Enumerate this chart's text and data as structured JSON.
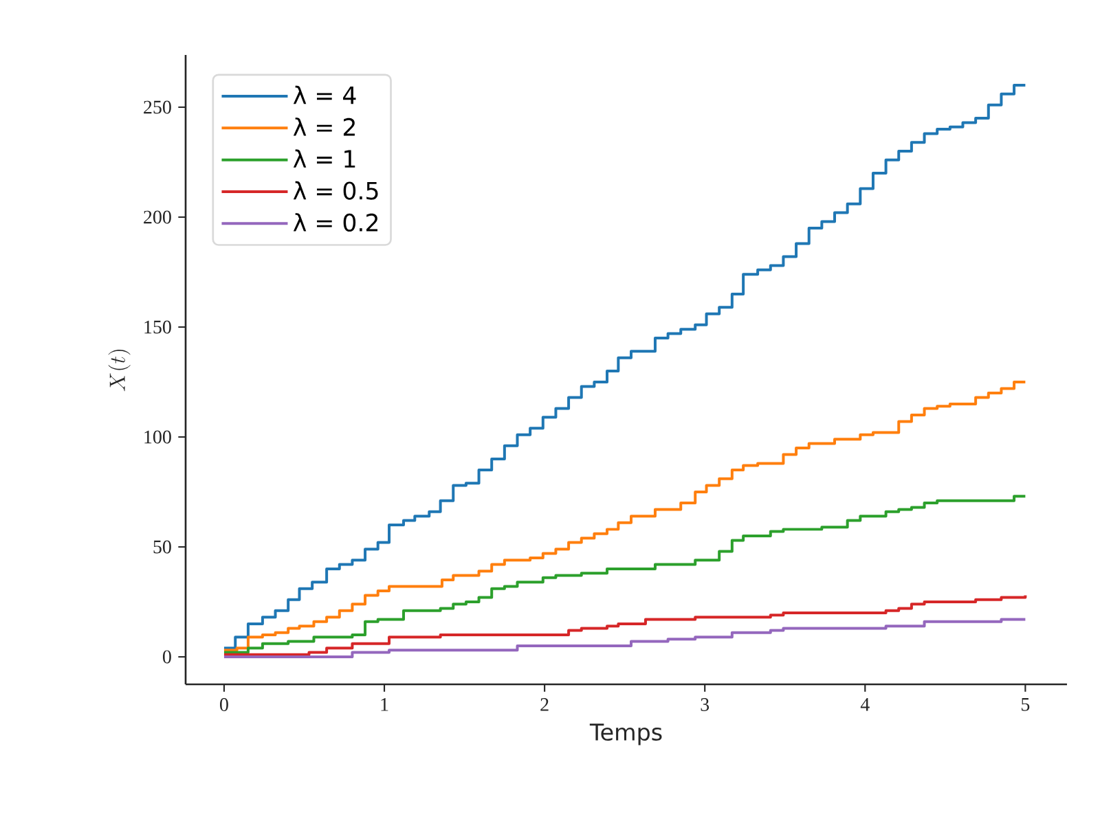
{
  "chart_data": {
    "type": "step",
    "xlabel": "Temps",
    "ylabel": "X(t)",
    "xlim": [
      -0.24,
      5.26
    ],
    "ylim": [
      -12.5,
      273.75
    ],
    "xticks": [
      0,
      1,
      2,
      3,
      4,
      5
    ],
    "yticks": [
      0,
      50,
      100,
      150,
      200,
      250
    ],
    "legend": "top left",
    "series": [
      {
        "name": "λ = 4",
        "color": "#1f77b4",
        "x": [
          0,
          0.07,
          0.15,
          0.24,
          0.32,
          0.4,
          0.47,
          0.55,
          0.64,
          0.72,
          0.8,
          0.88,
          0.96,
          1.03,
          1.12,
          1.19,
          1.28,
          1.35,
          1.43,
          1.51,
          1.59,
          1.67,
          1.75,
          1.83,
          1.91,
          1.99,
          2.07,
          2.15,
          2.23,
          2.31,
          2.39,
          2.46,
          2.54,
          2.69,
          2.77,
          2.85,
          2.94,
          3.01,
          3.09,
          3.17,
          3.24,
          3.33,
          3.41,
          3.49,
          3.57,
          3.65,
          3.73,
          3.81,
          3.89,
          3.97,
          4.05,
          4.13,
          4.21,
          4.29,
          4.37,
          4.45,
          4.53,
          4.61,
          4.69,
          4.77,
          4.85,
          4.93,
          5.0
        ],
        "values": [
          4,
          9,
          15,
          18,
          21,
          26,
          31,
          34,
          40,
          42,
          44,
          49,
          52,
          60,
          62,
          64,
          66,
          71,
          78,
          79,
          85,
          90,
          96,
          101,
          104,
          109,
          113,
          118,
          123,
          125,
          130,
          136,
          139,
          145,
          147,
          149,
          151,
          156,
          159,
          165,
          174,
          176,
          178,
          182,
          188,
          195,
          198,
          202,
          206,
          213,
          220,
          226,
          230,
          234,
          238,
          240,
          241,
          243,
          245,
          251,
          256,
          260,
          260
        ]
      },
      {
        "name": "λ = 2",
        "color": "#ff7f0e",
        "x": [
          0,
          0.08,
          0.15,
          0.24,
          0.32,
          0.4,
          0.47,
          0.56,
          0.64,
          0.72,
          0.8,
          0.88,
          0.96,
          1.03,
          1.36,
          1.43,
          1.59,
          1.67,
          1.75,
          1.91,
          1.99,
          2.07,
          2.15,
          2.23,
          2.31,
          2.39,
          2.46,
          2.54,
          2.69,
          2.85,
          2.94,
          3.01,
          3.09,
          3.17,
          3.24,
          3.33,
          3.49,
          3.57,
          3.65,
          3.81,
          3.97,
          4.05,
          4.21,
          4.29,
          4.37,
          4.45,
          4.53,
          4.69,
          4.77,
          4.85,
          4.93,
          5.0
        ],
        "values": [
          3,
          4,
          9,
          10,
          11,
          13,
          14,
          16,
          18,
          21,
          24,
          28,
          30,
          32,
          35,
          37,
          39,
          42,
          44,
          45,
          47,
          49,
          52,
          54,
          56,
          58,
          61,
          64,
          67,
          70,
          75,
          78,
          81,
          85,
          87,
          88,
          92,
          95,
          97,
          99,
          101,
          102,
          107,
          110,
          113,
          114,
          115,
          118,
          120,
          122,
          125,
          125
        ]
      },
      {
        "name": "λ = 1",
        "color": "#2ca02c",
        "x": [
          0,
          0.15,
          0.24,
          0.4,
          0.56,
          0.8,
          0.88,
          0.96,
          1.12,
          1.35,
          1.43,
          1.51,
          1.59,
          1.67,
          1.75,
          1.83,
          1.99,
          2.07,
          2.23,
          2.39,
          2.54,
          2.69,
          2.94,
          3.09,
          3.17,
          3.24,
          3.41,
          3.49,
          3.73,
          3.89,
          3.97,
          4.13,
          4.21,
          4.29,
          4.37,
          4.45,
          4.93,
          5.0
        ],
        "values": [
          2,
          4,
          6,
          7,
          9,
          10,
          16,
          17,
          21,
          22,
          24,
          25,
          27,
          31,
          32,
          34,
          36,
          37,
          38,
          40,
          40,
          42,
          44,
          48,
          53,
          55,
          57,
          58,
          59,
          62,
          64,
          66,
          67,
          68,
          70,
          71,
          73,
          73
        ]
      },
      {
        "name": "λ = 0.5",
        "color": "#d62728",
        "x": [
          0,
          0.53,
          0.64,
          0.8,
          1.03,
          1.35,
          2.15,
          2.23,
          2.39,
          2.46,
          2.63,
          2.94,
          3.41,
          3.49,
          4.13,
          4.21,
          4.29,
          4.37,
          4.69,
          4.85,
          5.0
        ],
        "values": [
          1,
          2,
          4,
          6,
          9,
          10,
          12,
          13,
          14,
          15,
          17,
          18,
          19,
          20,
          21,
          22,
          24,
          25,
          26,
          27,
          28
        ]
      },
      {
        "name": "λ = 0.2",
        "color": "#9467bd",
        "x": [
          0,
          0.8,
          1.03,
          1.83,
          2.54,
          2.77,
          2.94,
          3.17,
          3.41,
          3.49,
          4.13,
          4.37,
          4.85,
          5.0
        ],
        "values": [
          0,
          2,
          3,
          5,
          7,
          8,
          9,
          11,
          12,
          13,
          14,
          16,
          17,
          17
        ]
      }
    ]
  }
}
